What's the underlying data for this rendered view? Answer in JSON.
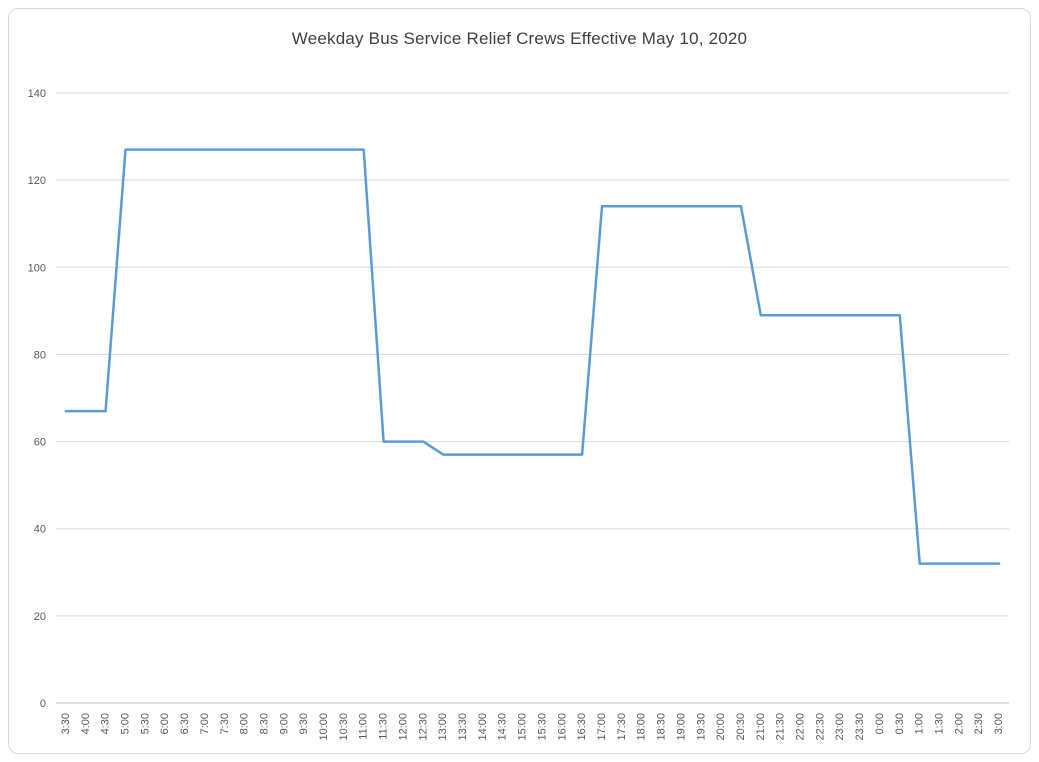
{
  "chart_data": {
    "type": "line",
    "title": "Weekday Bus Service Relief Crews Effective May 10, 2020",
    "xlabel": "",
    "ylabel": "",
    "ylim": [
      0,
      140
    ],
    "ytick_interval": 20,
    "grid": true,
    "legend": false,
    "line_color": "#5B9BD5",
    "gridline_color": "#D9D9D9",
    "axis_color": "#BFBFBF",
    "tick_label_color": "#595959",
    "categories": [
      "3:30",
      "4:00",
      "4:30",
      "5:00",
      "5:30",
      "6:00",
      "6:30",
      "7:00",
      "7:30",
      "8:00",
      "8:30",
      "9:00",
      "9:30",
      "10:00",
      "10:30",
      "11:00",
      "11:30",
      "12:00",
      "12:30",
      "13:00",
      "13:30",
      "14:00",
      "14:30",
      "15:00",
      "15:30",
      "16:00",
      "16:30",
      "17:00",
      "17:30",
      "18:00",
      "18:30",
      "19:00",
      "19:30",
      "20:00",
      "20:30",
      "21:00",
      "21:30",
      "22:00",
      "22:30",
      "23:00",
      "23:30",
      "0:00",
      "0:30",
      "1:00",
      "1:30",
      "2:00",
      "2:30",
      "3:00"
    ],
    "values": [
      67,
      67,
      67,
      127,
      127,
      127,
      127,
      127,
      127,
      127,
      127,
      127,
      127,
      127,
      127,
      127,
      60,
      60,
      60,
      57,
      57,
      57,
      57,
      57,
      57,
      57,
      57,
      114,
      114,
      114,
      114,
      114,
      114,
      114,
      114,
      89,
      89,
      89,
      89,
      89,
      89,
      89,
      89,
      32,
      32,
      32,
      32,
      32
    ]
  }
}
